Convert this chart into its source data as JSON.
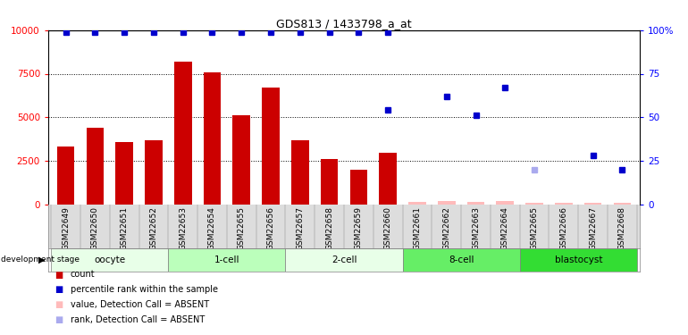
{
  "title": "GDS813 / 1433798_a_at",
  "samples": [
    "GSM22649",
    "GSM22650",
    "GSM22651",
    "GSM22652",
    "GSM22653",
    "GSM22654",
    "GSM22655",
    "GSM22656",
    "GSM22657",
    "GSM22658",
    "GSM22659",
    "GSM22660",
    "GSM22661",
    "GSM22662",
    "GSM22663",
    "GSM22664",
    "GSM22665",
    "GSM22666",
    "GSM22667",
    "GSM22668"
  ],
  "counts": [
    3300,
    4400,
    3600,
    3700,
    8200,
    7600,
    5100,
    6700,
    3700,
    2600,
    2000,
    2950,
    150,
    200,
    150,
    200,
    100,
    100,
    100,
    100
  ],
  "counts_absent": [
    false,
    false,
    false,
    false,
    false,
    false,
    false,
    false,
    false,
    false,
    false,
    false,
    true,
    true,
    true,
    true,
    true,
    true,
    true,
    true
  ],
  "percentile_ranks": [
    99,
    99,
    99,
    99,
    99,
    99,
    99,
    99,
    99,
    99,
    99,
    99,
    null,
    null,
    null,
    null,
    null,
    null,
    null,
    null
  ],
  "percentile_ranks_present": [
    true,
    true,
    true,
    true,
    true,
    true,
    true,
    true,
    true,
    true,
    true,
    true,
    false,
    false,
    false,
    false,
    false,
    false,
    false,
    false
  ],
  "extra_blue_dots": {
    "11": 54,
    "13": 62,
    "14": 51,
    "15": 67,
    "18": 28,
    "19": 20
  },
  "absent_blue_dot": {
    "16": 20
  },
  "stages": [
    {
      "name": "oocyte",
      "start": 0,
      "end": 3,
      "color": "#e8ffe8"
    },
    {
      "name": "1-cell",
      "start": 4,
      "end": 7,
      "color": "#bbffbb"
    },
    {
      "name": "2-cell",
      "start": 8,
      "end": 11,
      "color": "#e8ffe8"
    },
    {
      "name": "8-cell",
      "start": 12,
      "end": 15,
      "color": "#66ee66"
    },
    {
      "name": "blastocyst",
      "start": 16,
      "end": 19,
      "color": "#33dd33"
    }
  ],
  "ylim_left": [
    0,
    10000
  ],
  "ylim_right": [
    0,
    100
  ],
  "yticks_left": [
    0,
    2500,
    5000,
    7500,
    10000
  ],
  "yticks_right": [
    0,
    25,
    50,
    75,
    100
  ],
  "bar_color": "#cc0000",
  "bar_color_absent": "#ffbbbb",
  "dot_color_present": "#0000cc",
  "dot_color_absent": "#aaaaee"
}
